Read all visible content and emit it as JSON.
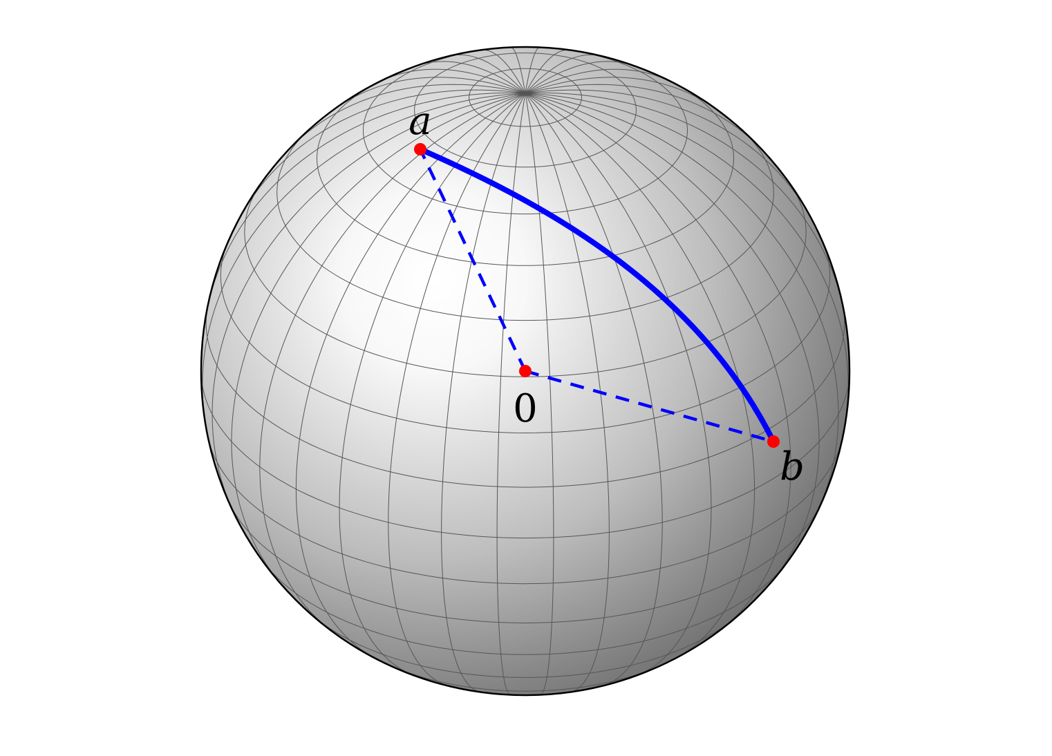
{
  "points": {
    "a": {
      "label": "a"
    },
    "origin": {
      "label": "0"
    },
    "b": {
      "label": "b"
    }
  },
  "colors": {
    "arc": "#0000ff",
    "radius_lines": "#0000ff",
    "points": "#ff0000",
    "grid": "#555555",
    "outline": "#000000",
    "sphere_highlight": "#ffffff",
    "sphere_shadow": "#4a4a4a"
  }
}
